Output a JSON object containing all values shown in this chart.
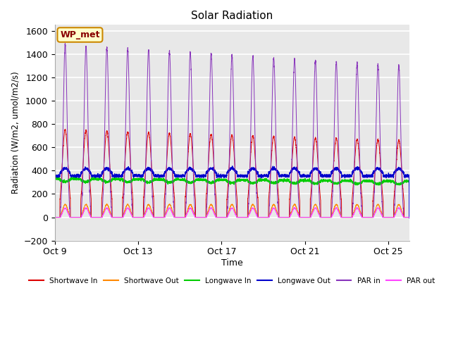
{
  "title": "Solar Radiation",
  "xlabel": "Time",
  "ylabel": "Radiation (W/m2, umol/m2/s)",
  "ylim": [
    -200,
    1650
  ],
  "yticks": [
    -200,
    0,
    200,
    400,
    600,
    800,
    1000,
    1200,
    1400,
    1600
  ],
  "outer_bg": "#ffffff",
  "plot_bg": "#e8e8e8",
  "grid_color": "#ffffff",
  "num_days": 17,
  "points_per_day": 288,
  "label_box_text": "WP_met",
  "label_box_facecolor": "#ffffcc",
  "label_box_edgecolor": "#cc8800",
  "series": {
    "shortwave_in": {
      "color": "#dd0000",
      "label": "Shortwave In"
    },
    "shortwave_out": {
      "color": "#ff8800",
      "label": "Shortwave Out"
    },
    "longwave_in": {
      "color": "#00cc00",
      "label": "Longwave In"
    },
    "longwave_out": {
      "color": "#0000cc",
      "label": "Longwave Out"
    },
    "par_in": {
      "color": "#8833bb",
      "label": "PAR in"
    },
    "par_out": {
      "color": "#ff44ff",
      "label": "PAR out"
    }
  },
  "xtick_labels": [
    "Oct 9",
    "Oct 13",
    "Oct 17",
    "Oct 21",
    "Oct 25"
  ],
  "xtick_positions": [
    0,
    4,
    8,
    12,
    16
  ]
}
